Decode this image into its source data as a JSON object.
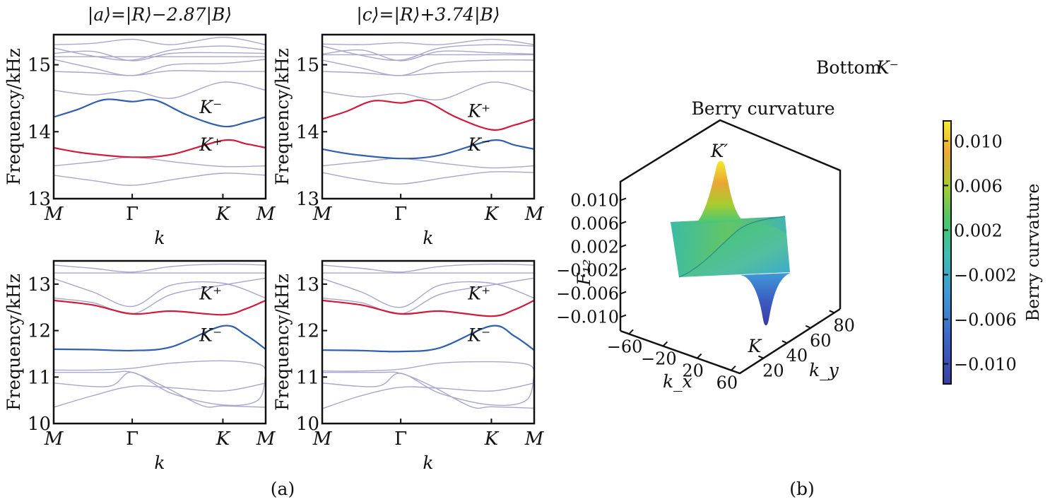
{
  "figure": {
    "panel_a_label": "(a)",
    "panel_b_label": "(b)"
  },
  "colors": {
    "K_plus": "#d01c3c",
    "K_minus": "#2f5fae",
    "background_band": "#a9a6cc",
    "frame": "#111111",
    "bottom_label_accent": "#4a7cc4"
  },
  "chart_data": [
    {
      "type": "line",
      "id": "band-top-left",
      "title": "|a⟩=|R⟩−2.87|B⟩",
      "xlabel": "k",
      "ylabel": "Frequency/kHz",
      "xticks": [
        "M",
        "Γ",
        "K",
        "M"
      ],
      "xtick_pos": [
        0,
        1,
        2.155,
        2.7
      ],
      "ylim": [
        13,
        15.45
      ],
      "yticks": [
        "13",
        "14",
        "15"
      ],
      "ytick_values": [
        13,
        14,
        15
      ],
      "grid": false,
      "annotations": [
        {
          "text": "K⁻",
          "series": "K_minus",
          "x": 2.0,
          "y": 14.28
        },
        {
          "text": "K⁺",
          "series": "K_plus",
          "x": 2.0,
          "y": 13.72
        }
      ],
      "highlight": [
        {
          "name": "K_minus",
          "x": [
            0,
            0.3,
            0.65,
            1.0,
            1.3,
            1.7,
            2.155,
            2.45,
            2.7
          ],
          "y": [
            14.22,
            14.33,
            14.48,
            14.45,
            14.47,
            14.25,
            14.08,
            14.14,
            14.22
          ]
        },
        {
          "name": "K_plus",
          "x": [
            0,
            0.4,
            1.0,
            1.5,
            2.155,
            2.45,
            2.7
          ],
          "y": [
            13.76,
            13.68,
            13.62,
            13.66,
            13.87,
            13.82,
            13.76
          ]
        }
      ],
      "bands": [
        {
          "x": [
            0,
            0.5,
            1.0,
            1.6,
            2.155,
            2.7
          ],
          "y": [
            13.35,
            13.27,
            13.2,
            13.3,
            13.38,
            13.35
          ]
        },
        {
          "x": [
            0,
            0.6,
            1.0,
            1.6,
            2.155,
            2.7
          ],
          "y": [
            13.49,
            13.56,
            13.62,
            13.54,
            13.48,
            13.49
          ]
        },
        {
          "x": [
            0,
            0.5,
            1.0,
            1.5,
            2.155,
            2.7
          ],
          "y": [
            14.62,
            14.55,
            14.61,
            14.5,
            14.74,
            14.62
          ]
        },
        {
          "x": [
            0,
            0.5,
            1.0,
            1.5,
            2.155,
            2.7
          ],
          "y": [
            14.9,
            14.88,
            14.84,
            14.91,
            14.9,
            14.9
          ]
        },
        {
          "x": [
            0,
            0.5,
            1.0,
            1.5,
            2.155,
            2.7
          ],
          "y": [
            15.08,
            14.95,
            14.84,
            15.0,
            15.02,
            15.08
          ]
        },
        {
          "x": [
            0,
            0.5,
            1.0,
            1.5,
            2.155,
            2.7
          ],
          "y": [
            15.12,
            15.12,
            15.12,
            15.12,
            15.12,
            15.12
          ]
        },
        {
          "x": [
            0,
            0.5,
            1.0,
            1.5,
            2.155,
            2.7
          ],
          "y": [
            15.17,
            15.2,
            15.06,
            15.17,
            15.18,
            15.17
          ]
        },
        {
          "x": [
            0,
            0.5,
            1.0,
            1.5,
            2.155,
            2.7
          ],
          "y": [
            15.25,
            15.13,
            15.07,
            15.22,
            15.28,
            15.22
          ]
        },
        {
          "x": [
            0,
            0.5,
            1.0,
            1.5,
            2.155,
            2.7
          ],
          "y": [
            15.3,
            15.32,
            15.38,
            15.3,
            15.41,
            15.3
          ]
        }
      ]
    },
    {
      "type": "line",
      "id": "band-top-right",
      "title": "|c⟩=|R⟩+3.74|B⟩",
      "xlabel": "k",
      "ylabel": "Frequency/kHz",
      "xticks": [
        "M",
        "Γ",
        "K",
        "M"
      ],
      "xtick_pos": [
        0,
        1,
        2.155,
        2.7
      ],
      "ylim": [
        13,
        15.45
      ],
      "yticks": [
        "13",
        "14",
        "15"
      ],
      "ytick_values": [
        13,
        14,
        15
      ],
      "grid": false,
      "annotations": [
        {
          "text": "K⁺",
          "series": "K_plus",
          "x": 2.0,
          "y": 14.22
        },
        {
          "text": "K⁻",
          "series": "K_minus",
          "x": 2.0,
          "y": 13.72
        }
      ],
      "highlight": [
        {
          "name": "K_plus",
          "x": [
            0,
            0.3,
            0.65,
            1.0,
            1.3,
            1.7,
            2.155,
            2.45,
            2.7
          ],
          "y": [
            14.19,
            14.3,
            14.46,
            14.43,
            14.46,
            14.22,
            14.03,
            14.1,
            14.19
          ]
        },
        {
          "name": "K_minus",
          "x": [
            0,
            0.4,
            1.0,
            1.5,
            2.155,
            2.45,
            2.7
          ],
          "y": [
            13.74,
            13.66,
            13.6,
            13.65,
            13.87,
            13.8,
            13.74
          ]
        }
      ],
      "bands": [
        {
          "x": [
            0,
            0.5,
            1.0,
            1.6,
            2.155,
            2.7
          ],
          "y": [
            13.39,
            13.28,
            13.22,
            13.32,
            13.4,
            13.39
          ]
        },
        {
          "x": [
            0,
            0.6,
            1.0,
            1.6,
            2.155,
            2.7
          ],
          "y": [
            13.49,
            13.56,
            13.6,
            13.52,
            13.46,
            13.49
          ]
        },
        {
          "x": [
            0,
            0.5,
            1.0,
            1.5,
            2.155,
            2.7
          ],
          "y": [
            14.6,
            14.52,
            14.57,
            14.48,
            14.74,
            14.6
          ]
        },
        {
          "x": [
            0,
            0.5,
            1.0,
            1.5,
            2.155,
            2.7
          ],
          "y": [
            14.9,
            14.88,
            14.84,
            14.88,
            14.9,
            14.9
          ]
        },
        {
          "x": [
            0,
            0.5,
            1.0,
            1.5,
            2.155,
            2.7
          ],
          "y": [
            15.07,
            14.95,
            14.84,
            15.02,
            15.07,
            15.07
          ]
        },
        {
          "x": [
            0,
            0.5,
            1.0,
            1.5,
            2.155,
            2.7
          ],
          "y": [
            15.15,
            15.15,
            15.15,
            15.15,
            15.15,
            15.15
          ]
        },
        {
          "x": [
            0,
            0.5,
            1.0,
            1.5,
            2.155,
            2.7
          ],
          "y": [
            15.16,
            15.22,
            15.06,
            15.2,
            15.18,
            15.16
          ]
        },
        {
          "x": [
            0,
            0.5,
            1.0,
            1.5,
            2.155,
            2.7
          ],
          "y": [
            15.28,
            15.14,
            15.07,
            15.25,
            15.3,
            15.28
          ]
        },
        {
          "x": [
            0,
            0.5,
            1.0,
            1.5,
            2.155,
            2.7
          ],
          "y": [
            15.31,
            15.3,
            15.33,
            15.3,
            15.38,
            15.3
          ]
        }
      ]
    },
    {
      "type": "line",
      "id": "band-bottom-left",
      "title": "",
      "xlabel": "k",
      "ylabel": "Frequency/kHz",
      "xticks": [
        "M",
        "Γ",
        "K",
        "M"
      ],
      "xtick_pos": [
        0,
        1,
        2.155,
        2.7
      ],
      "ylim": [
        10,
        13.5
      ],
      "yticks": [
        "10",
        "11",
        "12",
        "13"
      ],
      "ytick_values": [
        10,
        11,
        12,
        13
      ],
      "grid": false,
      "annotations": [
        {
          "text": "K⁺",
          "series": "K_plus",
          "x": 2.0,
          "y": 12.67
        },
        {
          "text": "K⁻",
          "series": "K_minus",
          "x": 2.0,
          "y": 11.77
        }
      ],
      "highlight": [
        {
          "name": "K_plus",
          "x": [
            0,
            0.5,
            1.0,
            1.5,
            2.155,
            2.45,
            2.7
          ],
          "y": [
            12.65,
            12.55,
            12.36,
            12.42,
            12.34,
            12.47,
            12.65
          ]
        },
        {
          "name": "K_minus",
          "x": [
            0,
            0.5,
            1.0,
            1.5,
            2.155,
            2.45,
            2.7
          ],
          "y": [
            11.6,
            11.59,
            11.57,
            11.65,
            12.1,
            11.9,
            11.6
          ]
        }
      ],
      "bands": [
        {
          "x": [
            0,
            0.5,
            1.0,
            1.5,
            2.155,
            2.7
          ],
          "y": [
            10.35,
            10.6,
            10.8,
            10.77,
            10.7,
            10.87
          ]
        },
        {
          "x": [
            0,
            0.7,
            1.0,
            1.5,
            2.155,
            2.6,
            2.7
          ],
          "y": [
            10.87,
            10.8,
            11.1,
            10.65,
            10.4,
            10.5,
            11.05
          ]
        },
        {
          "x": [
            0,
            0.7,
            1.0,
            1.4,
            1.9,
            2.155,
            2.7
          ],
          "y": [
            11.1,
            11.1,
            11.1,
            10.8,
            10.38,
            10.38,
            10.35
          ]
        },
        {
          "x": [
            0,
            0.5,
            1.0,
            1.5,
            2.155,
            2.6,
            2.7
          ],
          "y": [
            11.15,
            11.15,
            11.19,
            11.3,
            11.35,
            11.28,
            11.17
          ]
        },
        {
          "x": [
            0,
            0.5,
            1.0,
            1.5,
            2.155,
            2.7
          ],
          "y": [
            12.7,
            12.6,
            12.36,
            12.78,
            12.98,
            13.13
          ]
        },
        {
          "x": [
            0,
            0.5,
            1.0,
            1.5,
            2.155,
            2.7
          ],
          "y": [
            13.12,
            12.83,
            12.52,
            12.98,
            13.02,
            12.7
          ]
        },
        {
          "x": [
            0,
            0.5,
            1.0,
            1.5,
            2.155,
            2.7
          ],
          "y": [
            13.24,
            13.24,
            13.24,
            13.24,
            13.24,
            13.24
          ]
        },
        {
          "x": [
            0,
            0.5,
            1.0,
            1.5,
            2.155,
            2.7
          ],
          "y": [
            13.41,
            13.34,
            13.26,
            13.38,
            13.43,
            13.41
          ]
        }
      ]
    },
    {
      "type": "line",
      "id": "band-bottom-right",
      "title": "",
      "xlabel": "k",
      "ylabel": "Frequency/kHz",
      "xticks": [
        "M",
        "Γ",
        "K",
        "M"
      ],
      "xtick_pos": [
        0,
        1,
        2.155,
        2.7
      ],
      "ylim": [
        10,
        13.5
      ],
      "yticks": [
        "10",
        "11",
        "12",
        "13"
      ],
      "ytick_values": [
        10,
        11,
        12,
        13
      ],
      "grid": false,
      "annotations": [
        {
          "text": "K⁺",
          "series": "K_plus",
          "x": 2.0,
          "y": 12.67
        },
        {
          "text": "K⁻",
          "series": "K_minus",
          "x": 2.0,
          "y": 11.77
        }
      ],
      "highlight": [
        {
          "name": "K_plus",
          "x": [
            0,
            0.5,
            1.0,
            1.5,
            2.155,
            2.45,
            2.7
          ],
          "y": [
            12.65,
            12.55,
            12.36,
            12.42,
            12.31,
            12.45,
            12.65
          ]
        },
        {
          "name": "K_minus",
          "x": [
            0,
            0.5,
            1.0,
            1.5,
            2.155,
            2.45,
            2.7
          ],
          "y": [
            11.58,
            11.57,
            11.55,
            11.63,
            12.1,
            11.88,
            11.58
          ]
        }
      ],
      "bands": [
        {
          "x": [
            0,
            0.5,
            1.0,
            1.5,
            2.155,
            2.7
          ],
          "y": [
            10.32,
            10.6,
            10.78,
            10.76,
            10.7,
            10.87
          ]
        },
        {
          "x": [
            0,
            0.7,
            1.0,
            1.5,
            2.155,
            2.6,
            2.7
          ],
          "y": [
            10.87,
            10.8,
            11.08,
            10.65,
            10.4,
            10.5,
            11.05
          ]
        },
        {
          "x": [
            0,
            0.7,
            1.0,
            1.4,
            1.9,
            2.155,
            2.7
          ],
          "y": [
            11.1,
            11.1,
            11.08,
            10.8,
            10.36,
            10.36,
            10.33
          ]
        },
        {
          "x": [
            0,
            0.5,
            1.0,
            1.5,
            2.155,
            2.6,
            2.7
          ],
          "y": [
            11.13,
            11.13,
            11.17,
            11.3,
            11.33,
            11.28,
            11.15
          ]
        },
        {
          "x": [
            0,
            0.5,
            1.0,
            1.5,
            2.155,
            2.7
          ],
          "y": [
            12.7,
            12.6,
            12.36,
            12.78,
            12.98,
            13.13
          ]
        },
        {
          "x": [
            0,
            0.5,
            1.0,
            1.5,
            2.155,
            2.7
          ],
          "y": [
            13.12,
            12.83,
            12.5,
            12.98,
            13.02,
            12.7
          ]
        },
        {
          "x": [
            0,
            0.5,
            1.0,
            1.5,
            2.155,
            2.7
          ],
          "y": [
            13.24,
            13.24,
            13.24,
            13.24,
            13.24,
            13.24
          ]
        },
        {
          "x": [
            0,
            0.5,
            1.0,
            1.5,
            2.155,
            2.7
          ],
          "y": [
            13.41,
            13.34,
            13.26,
            13.38,
            13.43,
            13.41
          ]
        }
      ]
    },
    {
      "type": "surface",
      "id": "berry-curvature-3d",
      "title": "Berry curvature",
      "header_text": "Bottom",
      "header_accent": "K⁻",
      "zlabel": "F₁₂",
      "xlabel": "k_x",
      "ylabel": "k_y",
      "zticks": [
        "0.010",
        "0.006",
        "0.002",
        "−0.002",
        "−0.006",
        "−0.010"
      ],
      "ztick_values": [
        0.01,
        0.006,
        0.002,
        -0.002,
        -0.006,
        -0.01
      ],
      "xticks": [
        "−60",
        "−20",
        "20",
        "60"
      ],
      "xtick_values": [
        -60,
        -20,
        20,
        60
      ],
      "yticks": [
        "20",
        "40",
        "60",
        "80"
      ],
      "ytick_values": [
        20,
        40,
        60,
        80
      ],
      "zlim": [
        -0.012,
        0.012
      ],
      "peaks": [
        {
          "label": "K′",
          "value": 0.0115
        },
        {
          "label": "K",
          "value": -0.0115
        }
      ],
      "colorbar": {
        "label": "Berry curvature",
        "colormap": "viridis-like",
        "ticks": [
          "0.010",
          "0.006",
          "0.002",
          "−0.002",
          "−0.006",
          "−0.010"
        ],
        "tick_values": [
          0.01,
          0.006,
          0.002,
          -0.002,
          -0.006,
          -0.01
        ],
        "range": [
          -0.0118,
          0.0118
        ],
        "stops": [
          "#3a3fa0",
          "#3c63c4",
          "#3f9fe0",
          "#3cc3b0",
          "#4cc860",
          "#a8cf30",
          "#f0a830",
          "#f4ee30"
        ]
      }
    }
  ]
}
